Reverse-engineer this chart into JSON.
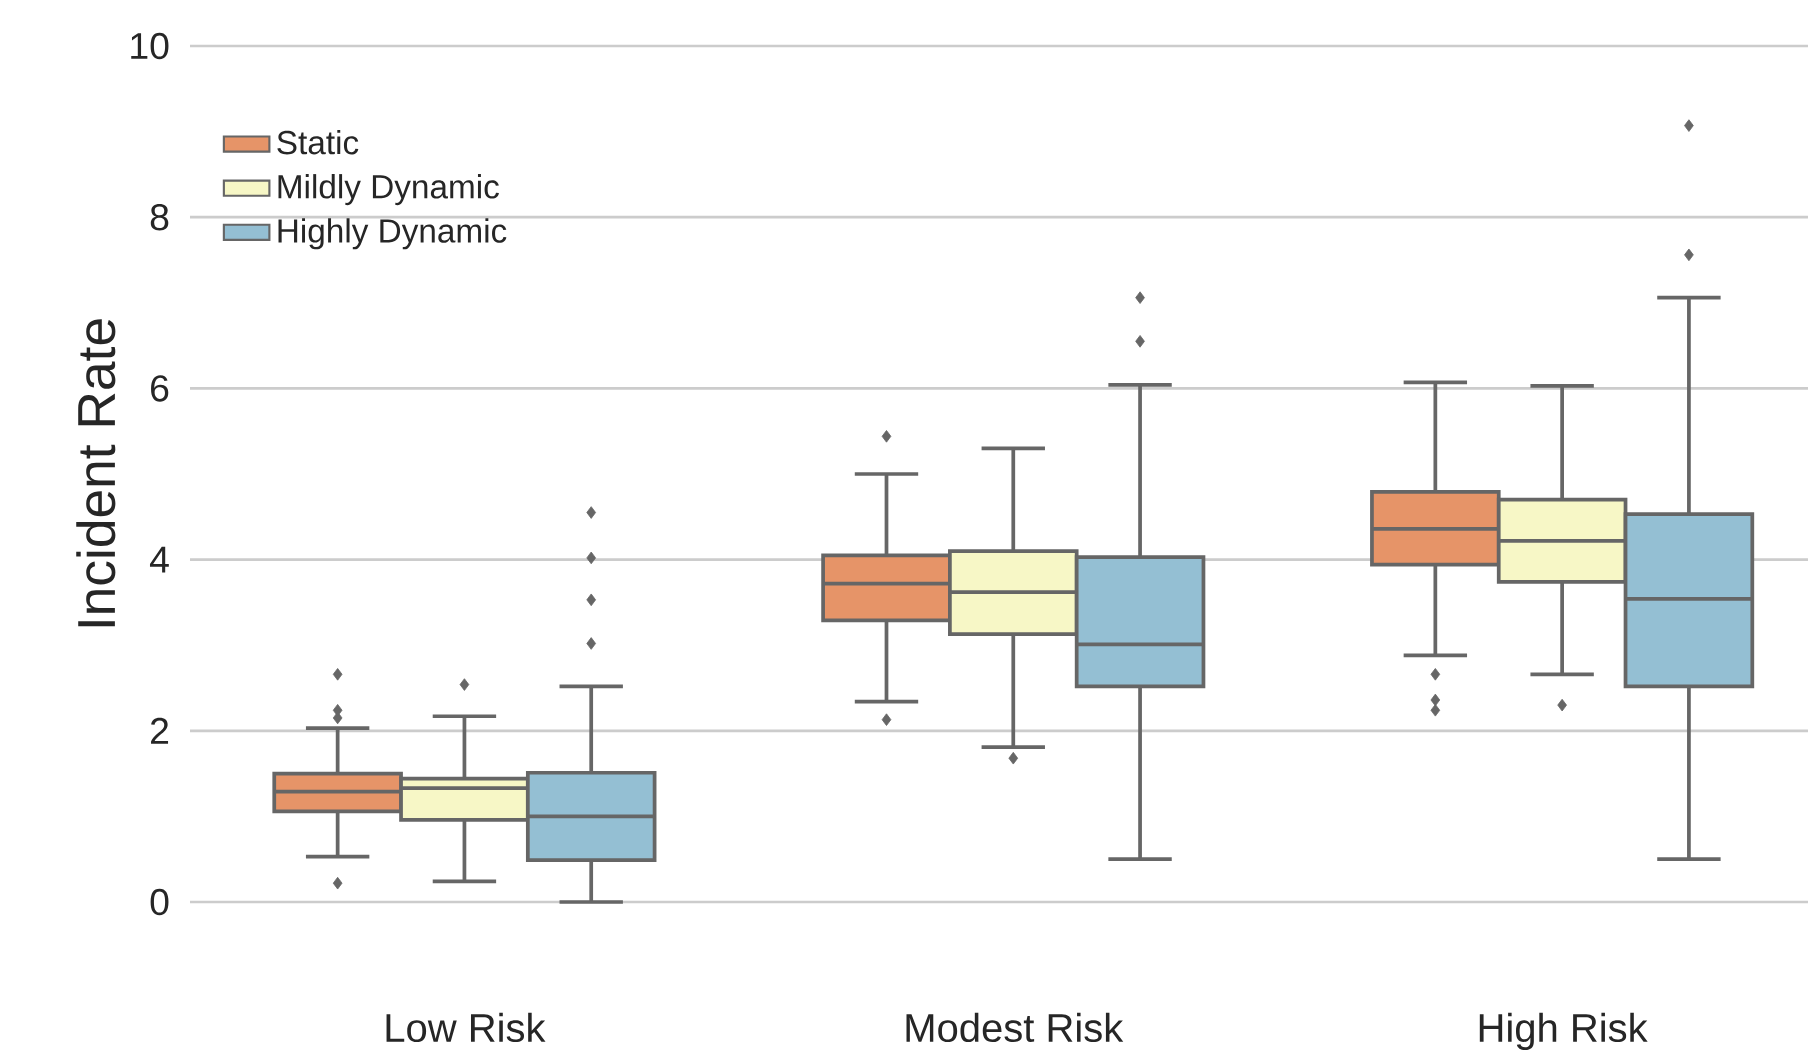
{
  "chart_data": {
    "type": "box",
    "ylabel": "Incident Rate",
    "categories": [
      "Low Risk",
      "Modest Risk",
      "High Risk"
    ],
    "series": [
      {
        "name": "Static",
        "color": "#e69468",
        "boxes": [
          {
            "low": 0.53,
            "q1": 1.06,
            "median": 1.29,
            "q3": 1.5,
            "high": 2.03,
            "outliers": [
              0.22,
              2.15,
              2.24,
              2.66
            ]
          },
          {
            "low": 2.34,
            "q1": 3.29,
            "median": 3.72,
            "q3": 4.05,
            "high": 5.0,
            "outliers": [
              2.13,
              5.44
            ]
          },
          {
            "low": 2.88,
            "q1": 3.94,
            "median": 4.36,
            "q3": 4.79,
            "high": 6.07,
            "outliers": [
              2.24,
              2.36,
              2.66
            ]
          }
        ]
      },
      {
        "name": "Mildly Dynamic",
        "color": "#f7f7c6",
        "boxes": [
          {
            "low": 0.24,
            "q1": 0.96,
            "median": 1.33,
            "q3": 1.44,
            "high": 2.17,
            "outliers": [
              2.54
            ]
          },
          {
            "low": 1.81,
            "q1": 3.13,
            "median": 3.62,
            "q3": 4.1,
            "high": 5.3,
            "outliers": [
              1.68
            ]
          },
          {
            "low": 2.66,
            "q1": 3.74,
            "median": 4.22,
            "q3": 4.7,
            "high": 6.03,
            "outliers": [
              2.3
            ]
          }
        ]
      },
      {
        "name": "Highly Dynamic",
        "color": "#94bfd3",
        "boxes": [
          {
            "low": 0.0,
            "q1": 0.49,
            "median": 1.0,
            "q3": 1.51,
            "high": 2.52,
            "outliers": [
              3.02,
              3.53,
              4.02,
              4.55
            ]
          },
          {
            "low": 0.5,
            "q1": 2.52,
            "median": 3.01,
            "q3": 4.03,
            "high": 6.04,
            "outliers": [
              6.55,
              7.06
            ]
          },
          {
            "low": 0.5,
            "q1": 2.52,
            "median": 3.54,
            "q3": 4.53,
            "high": 7.06,
            "outliers": [
              7.56,
              9.07
            ]
          }
        ]
      }
    ],
    "ylim": [
      0,
      10
    ],
    "yticks": [
      0,
      2,
      4,
      6,
      8,
      10
    ],
    "grid": "y",
    "legend": "top left"
  }
}
